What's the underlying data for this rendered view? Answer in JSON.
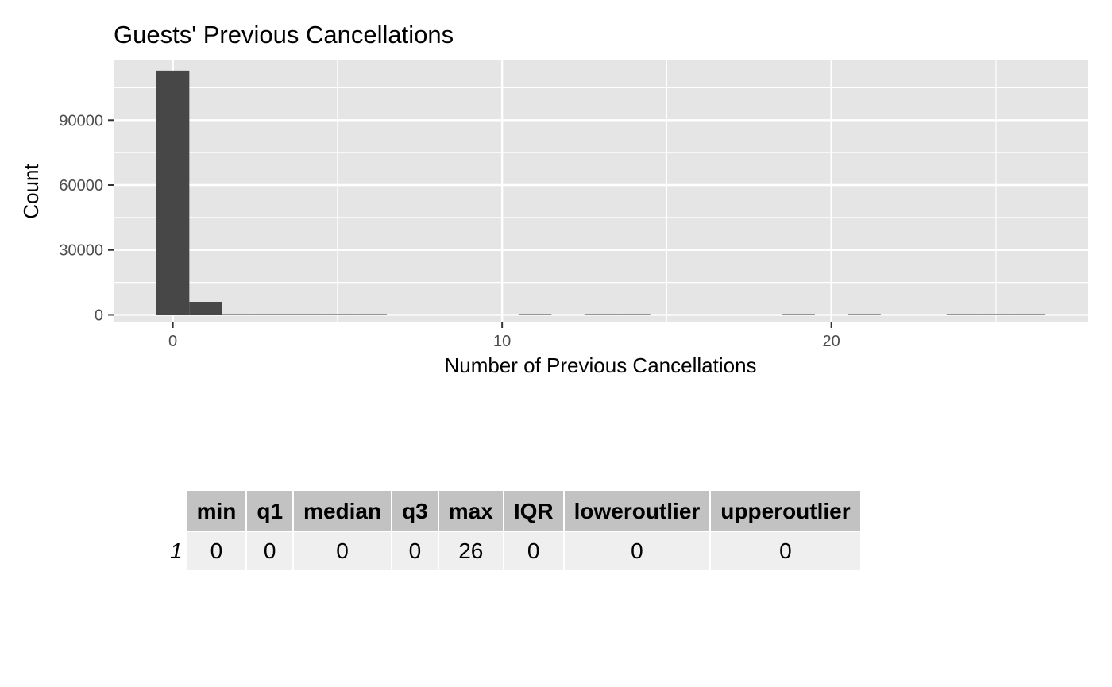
{
  "chart_data": {
    "type": "bar",
    "title": "Guests' Previous Cancellations",
    "xlabel": "Number of Previous Cancellations",
    "ylabel": "Count",
    "xlim": [
      -1.8,
      27.8
    ],
    "ylim": [
      -3500,
      118000
    ],
    "xticks": [
      0,
      10,
      20
    ],
    "yticks": [
      0,
      30000,
      60000,
      90000
    ],
    "bin_width": 1,
    "x": [
      0,
      1,
      2,
      3,
      4,
      5,
      6,
      11,
      13,
      14,
      19,
      21,
      24,
      25,
      26
    ],
    "values": [
      112906,
      6051,
      116,
      65,
      31,
      19,
      22,
      35,
      12,
      14,
      19,
      1,
      48,
      25,
      26
    ],
    "grid": true,
    "colors": {
      "bar": "#474747",
      "panel": "#e5e5e5",
      "grid": "#ffffff"
    }
  },
  "stats_table": {
    "columns": [
      "min",
      "q1",
      "median",
      "q3",
      "max",
      "IQR",
      "loweroutlier",
      "upperoutlier"
    ],
    "rows": [
      {
        "name": "1",
        "values": [
          "0",
          "0",
          "0",
          "0",
          "26",
          "0",
          "0",
          "0"
        ]
      }
    ]
  }
}
